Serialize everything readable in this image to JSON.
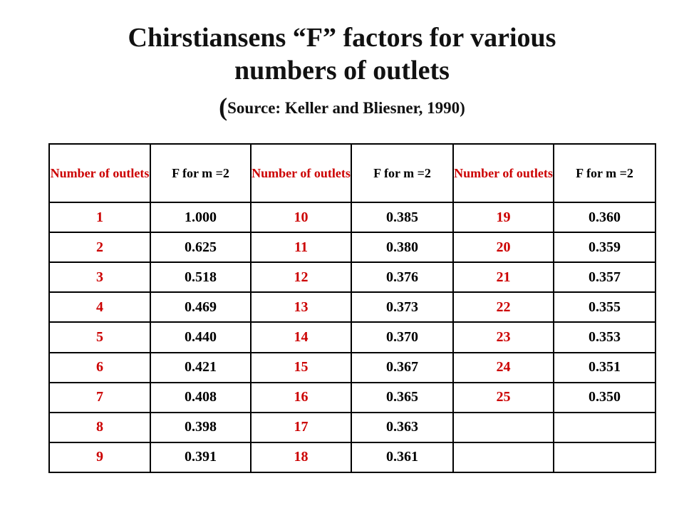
{
  "title": {
    "line1": "Chirstiansens “F” factors for various",
    "line2": "numbers of outlets",
    "source_open": "(",
    "source_text": "Source: Keller and Bliesner, 1990)"
  },
  "table": {
    "headers": [
      "Number of outlets",
      "F for m =2",
      "Number of outlets",
      "F for m =2",
      "Number of outlets",
      "F for m =2"
    ],
    "rows": [
      [
        "1",
        "1.000",
        "10",
        "0.385",
        "19",
        "0.360"
      ],
      [
        "2",
        "0.625",
        "11",
        "0.380",
        "20",
        "0.359"
      ],
      [
        "3",
        "0.518",
        "12",
        "0.376",
        "21",
        "0.357"
      ],
      [
        "4",
        "0.469",
        "13",
        "0.373",
        "22",
        "0.355"
      ],
      [
        "5",
        "0.440",
        "14",
        "0.370",
        "23",
        "0.353"
      ],
      [
        "6",
        "0.421",
        "15",
        "0.367",
        "24",
        "0.351"
      ],
      [
        "7",
        "0.408",
        "16",
        "0.365",
        "25",
        "0.350"
      ],
      [
        "8",
        "0.398",
        "17",
        "0.363",
        "",
        ""
      ],
      [
        "9",
        "0.391",
        "18",
        "0.361",
        "",
        ""
      ]
    ]
  },
  "colors": {
    "outlet_number": "#cc0000",
    "factor_value": "#000000",
    "border": "#000000"
  }
}
